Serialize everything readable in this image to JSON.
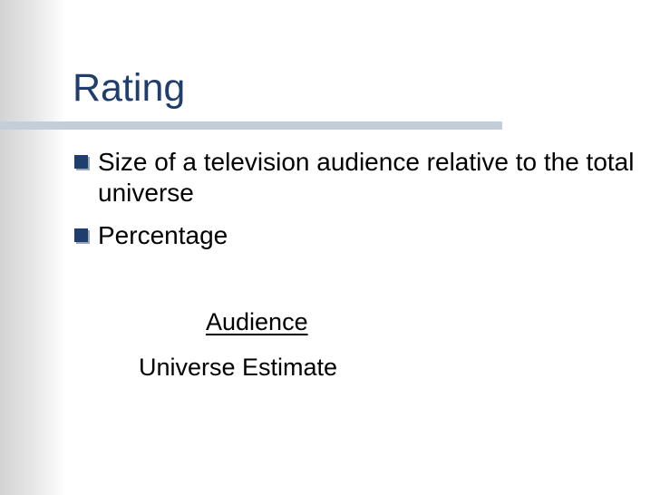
{
  "slide": {
    "title": "Rating",
    "bullets": [
      {
        "text": "Size of a television audience relative to the total universe"
      },
      {
        "text": "Percentage"
      }
    ],
    "formula": {
      "numerator": "Audience",
      "denominator": "Universe Estimate"
    }
  },
  "colors": {
    "title": "#1f3d6d",
    "title_rule": "#c3cedb",
    "bullet_marker": "#1f3d6d",
    "left_band": "#d3d3d3"
  },
  "icons": {
    "bullet": "square-bullet-icon"
  }
}
